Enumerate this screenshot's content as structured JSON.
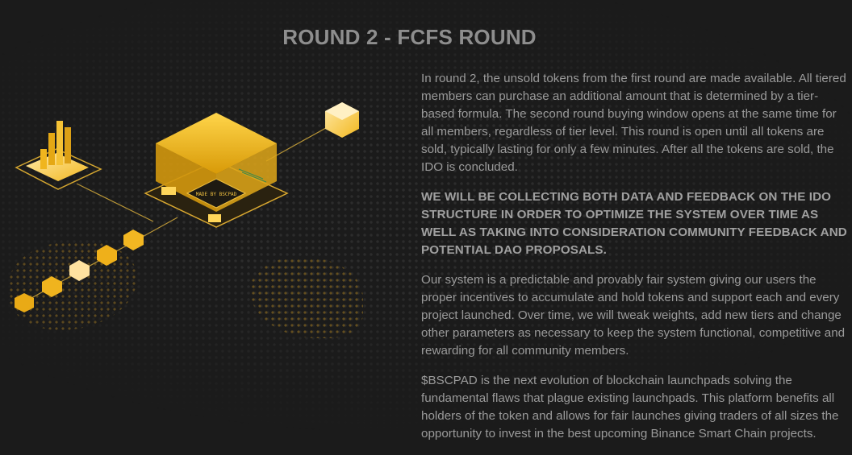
{
  "section": {
    "title": "ROUND 2 - FCFS ROUND",
    "paragraphs": [
      "In round 2, the unsold tokens from the first round are made available. All tiered members can purchase an additional amount that is determined by a tier-based formula. The second round buying window opens at the same time for all members, regardless of tier level. This round is open until all tokens are sold, typically lasting for only a few minutes. After all the tokens are sold, the IDO is concluded.",
      "WE WILL BE COLLECTING BOTH DATA AND FEEDBACK ON THE IDO STRUCTURE IN ORDER TO OPTIMIZE THE SYSTEM OVER TIME AS WELL AS TAKING INTO CONSIDERATION COMMUNITY FEEDBACK AND POTENTIAL DAO PROPOSALS.",
      "Our system is a predictable and provably fair system giving our users the proper incentives to accumulate and hold tokens and support each and every project launched. Over time, we will tweak weights, add new tiers and change other parameters as necessary to keep the system functional, competitive and rewarding for all community members.",
      "$BSCPAD is the next evolution of blockchain launchpads solving the fundamental flaws that plague existing launchpads. This platform benefits all holders of the token and allows for fair launches giving traders of all sizes the opportunity to invest in the best upcoming Binance Smart Chain projects."
    ]
  },
  "illustration": {
    "chip_text": "MADE BY BSCPAD",
    "accent_color": "#f3b81c",
    "icons": [
      "bar-chart-platform-icon",
      "blockchain-chip-icon",
      "token-cube-icon"
    ]
  }
}
